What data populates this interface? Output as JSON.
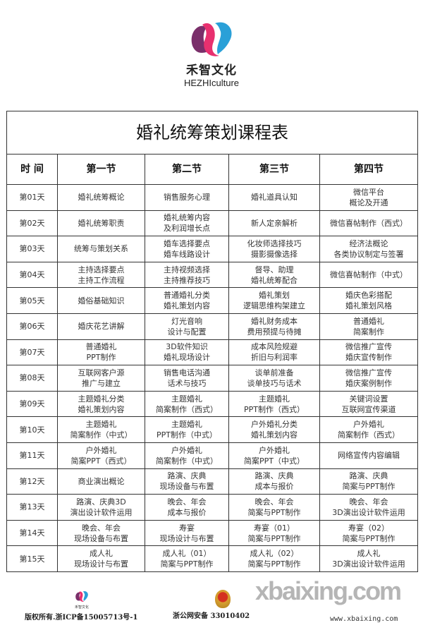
{
  "brand": {
    "name_cn": "禾智文化",
    "name_en": "HEZHIculture"
  },
  "table": {
    "title": "婚礼统筹策划课程表",
    "headers": [
      "时 间",
      "第一节",
      "第二节",
      "第三节",
      "第四节"
    ],
    "rows": [
      [
        "第01天",
        "婚礼统筹概论",
        "销售服务心理",
        "婚礼道具认知",
        "微信平台\n概论及开通"
      ],
      [
        "第02天",
        "婚礼统筹职责",
        "婚礼统筹内容\n及利润增长点",
        "新人定亲解析",
        "微信喜帖制作（西式）"
      ],
      [
        "第03天",
        "统筹与策划关系",
        "婚车选择要点\n婚车线路设计",
        "化妆师选择技巧\n摄影摄像选择",
        "经济法概论\n各类协议制定与签署"
      ],
      [
        "第04天",
        "主持选择要点\n主持工作流程",
        "主持视频选择\n主持推荐技巧",
        "督导、助理\n婚礼统筹配合",
        "微信喜帖制作（中式）"
      ],
      [
        "第05天",
        "婚俗基础知识",
        "普通婚礼分类\n婚礼策划内容",
        "婚礼策划\n逻辑思维构架建立",
        "婚庆色彩搭配\n婚礼策划风格"
      ],
      [
        "第06天",
        "婚庆花艺讲解",
        "灯光音响\n设计与配置",
        "婚礼财务成本\n费用预提与待摊",
        "普通婚礼\n简案制作"
      ],
      [
        "第07天",
        "普通婚礼\nPPT制作",
        "3D软件知识\n婚礼现场设计",
        "成本风险规避\n折旧与利润率",
        "微信推广宣传\n婚庆宣传制作"
      ],
      [
        "第08天",
        "互联网客户源\n推广与建立",
        "销售电话沟通\n话术与技巧",
        "谈单前准备\n谈单技巧与话术",
        "微信推广宣传\n婚庆案例制作"
      ],
      [
        "第09天",
        "主题婚礼分类\n婚礼策划内容",
        "主题婚礼\n简案制作（西式）",
        "主题婚礼\nPPT制作（西式）",
        "关键词设置\n互联网宣传渠道"
      ],
      [
        "第10天",
        "主题婚礼\n简案制作（中式）",
        "主题婚礼\nPPT制作（中式）",
        "户外婚礼分类\n婚礼策划内容",
        "户外婚礼\n简案制作（西式）"
      ],
      [
        "第11天",
        "户外婚礼\n简案PPT（西式）",
        "户外婚礼\n简案制作（中式）",
        "户外婚礼\n简案PPT（中式）",
        "网络宣传内容编辑"
      ],
      [
        "第12天",
        "商业演出概论",
        "路演、庆典\n现场设备与布置",
        "路演、庆典\n成本与报价",
        "路演、庆典\n简案与PPT制作"
      ],
      [
        "第13天",
        "路演、庆典3D\n演出设计软件运用",
        "晚会、年会\n成本与报价",
        "晚会、年会\n简案与PPT制作",
        "晚会、年会\n3D演出设计软件运用"
      ],
      [
        "第14天",
        "晚会、年会\n现场设备与布置",
        "寿宴\n现场设计与布置",
        "寿宴（01）\n简案与PPT制作",
        "寿宴（02）\n简案与PPT制作"
      ],
      [
        "第15天",
        "成人礼\n现场设计与布置",
        "成人礼（01）\n简案与PPT制作",
        "成人礼（02）\n简案与PPT制作",
        "成人礼\n3D演出设计软件运用"
      ]
    ]
  },
  "footer": {
    "copyright": "版权所有.浙ICP备15005713号-1",
    "police": "浙公网安备 33010402",
    "watermark": "xbaixing.com",
    "watermark_url": "www.xbaixing.com"
  }
}
